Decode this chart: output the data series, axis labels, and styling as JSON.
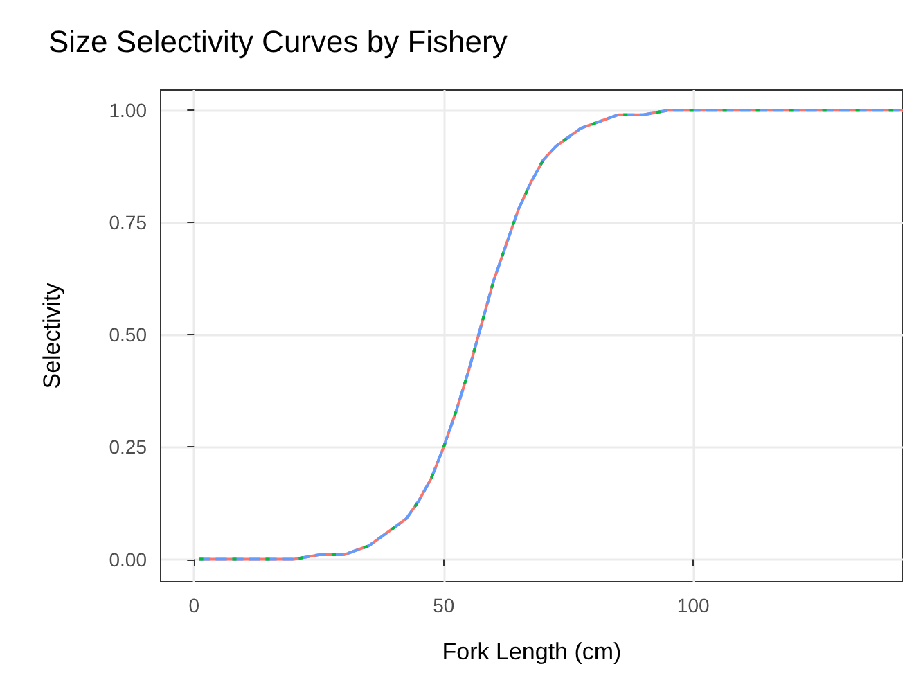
{
  "chart_data": {
    "type": "line",
    "title": "Size Selectivity Curves by Fishery",
    "xlabel": "Fork Length (cm)",
    "ylabel": "Selectivity",
    "x": [
      1,
      5,
      10,
      15,
      20,
      25,
      30,
      35,
      40,
      42.5,
      45,
      47.5,
      50,
      52.5,
      55,
      57,
      60,
      62.5,
      65,
      67.5,
      70,
      72.5,
      75,
      77.5,
      80,
      85,
      90,
      95,
      100,
      110,
      120,
      142
    ],
    "series": [
      {
        "color": "#f8766d",
        "line_style": "solid",
        "values": [
          0.0,
          0.0,
          0.0,
          0.0,
          0.0,
          0.01,
          0.01,
          0.03,
          0.07,
          0.09,
          0.13,
          0.18,
          0.25,
          0.33,
          0.42,
          0.5,
          0.62,
          0.7,
          0.78,
          0.84,
          0.89,
          0.92,
          0.94,
          0.96,
          0.97,
          0.99,
          0.99,
          1.0,
          1.0,
          1.0,
          1.0,
          1.0
        ]
      },
      {
        "color": "#00ba38",
        "line_style": "dotted",
        "values": [
          0.0,
          0.0,
          0.0,
          0.0,
          0.0,
          0.01,
          0.01,
          0.03,
          0.07,
          0.09,
          0.13,
          0.18,
          0.25,
          0.33,
          0.42,
          0.5,
          0.62,
          0.7,
          0.78,
          0.84,
          0.89,
          0.92,
          0.94,
          0.96,
          0.97,
          0.99,
          0.99,
          1.0,
          1.0,
          1.0,
          1.0,
          1.0
        ]
      },
      {
        "color": "#619cff",
        "line_style": "dashed",
        "values": [
          0.0,
          0.0,
          0.0,
          0.0,
          0.0,
          0.01,
          0.01,
          0.03,
          0.07,
          0.09,
          0.13,
          0.18,
          0.25,
          0.33,
          0.42,
          0.5,
          0.62,
          0.7,
          0.78,
          0.84,
          0.89,
          0.92,
          0.94,
          0.96,
          0.97,
          0.99,
          0.99,
          1.0,
          1.0,
          1.0,
          1.0,
          1.0
        ]
      }
    ],
    "xlim": [
      -6.7,
      142
    ],
    "xticks": [
      0,
      50,
      100
    ],
    "ylim": [
      -0.05,
      1.045
    ],
    "yticks": [
      {
        "value": 0,
        "label": "0.00"
      },
      {
        "value": 0.25,
        "label": "0.25"
      },
      {
        "value": 0.5,
        "label": "0.50"
      },
      {
        "value": 0.75,
        "label": "0.75"
      },
      {
        "value": 1,
        "label": "1.00"
      }
    ],
    "grid": true,
    "marker": "none"
  }
}
